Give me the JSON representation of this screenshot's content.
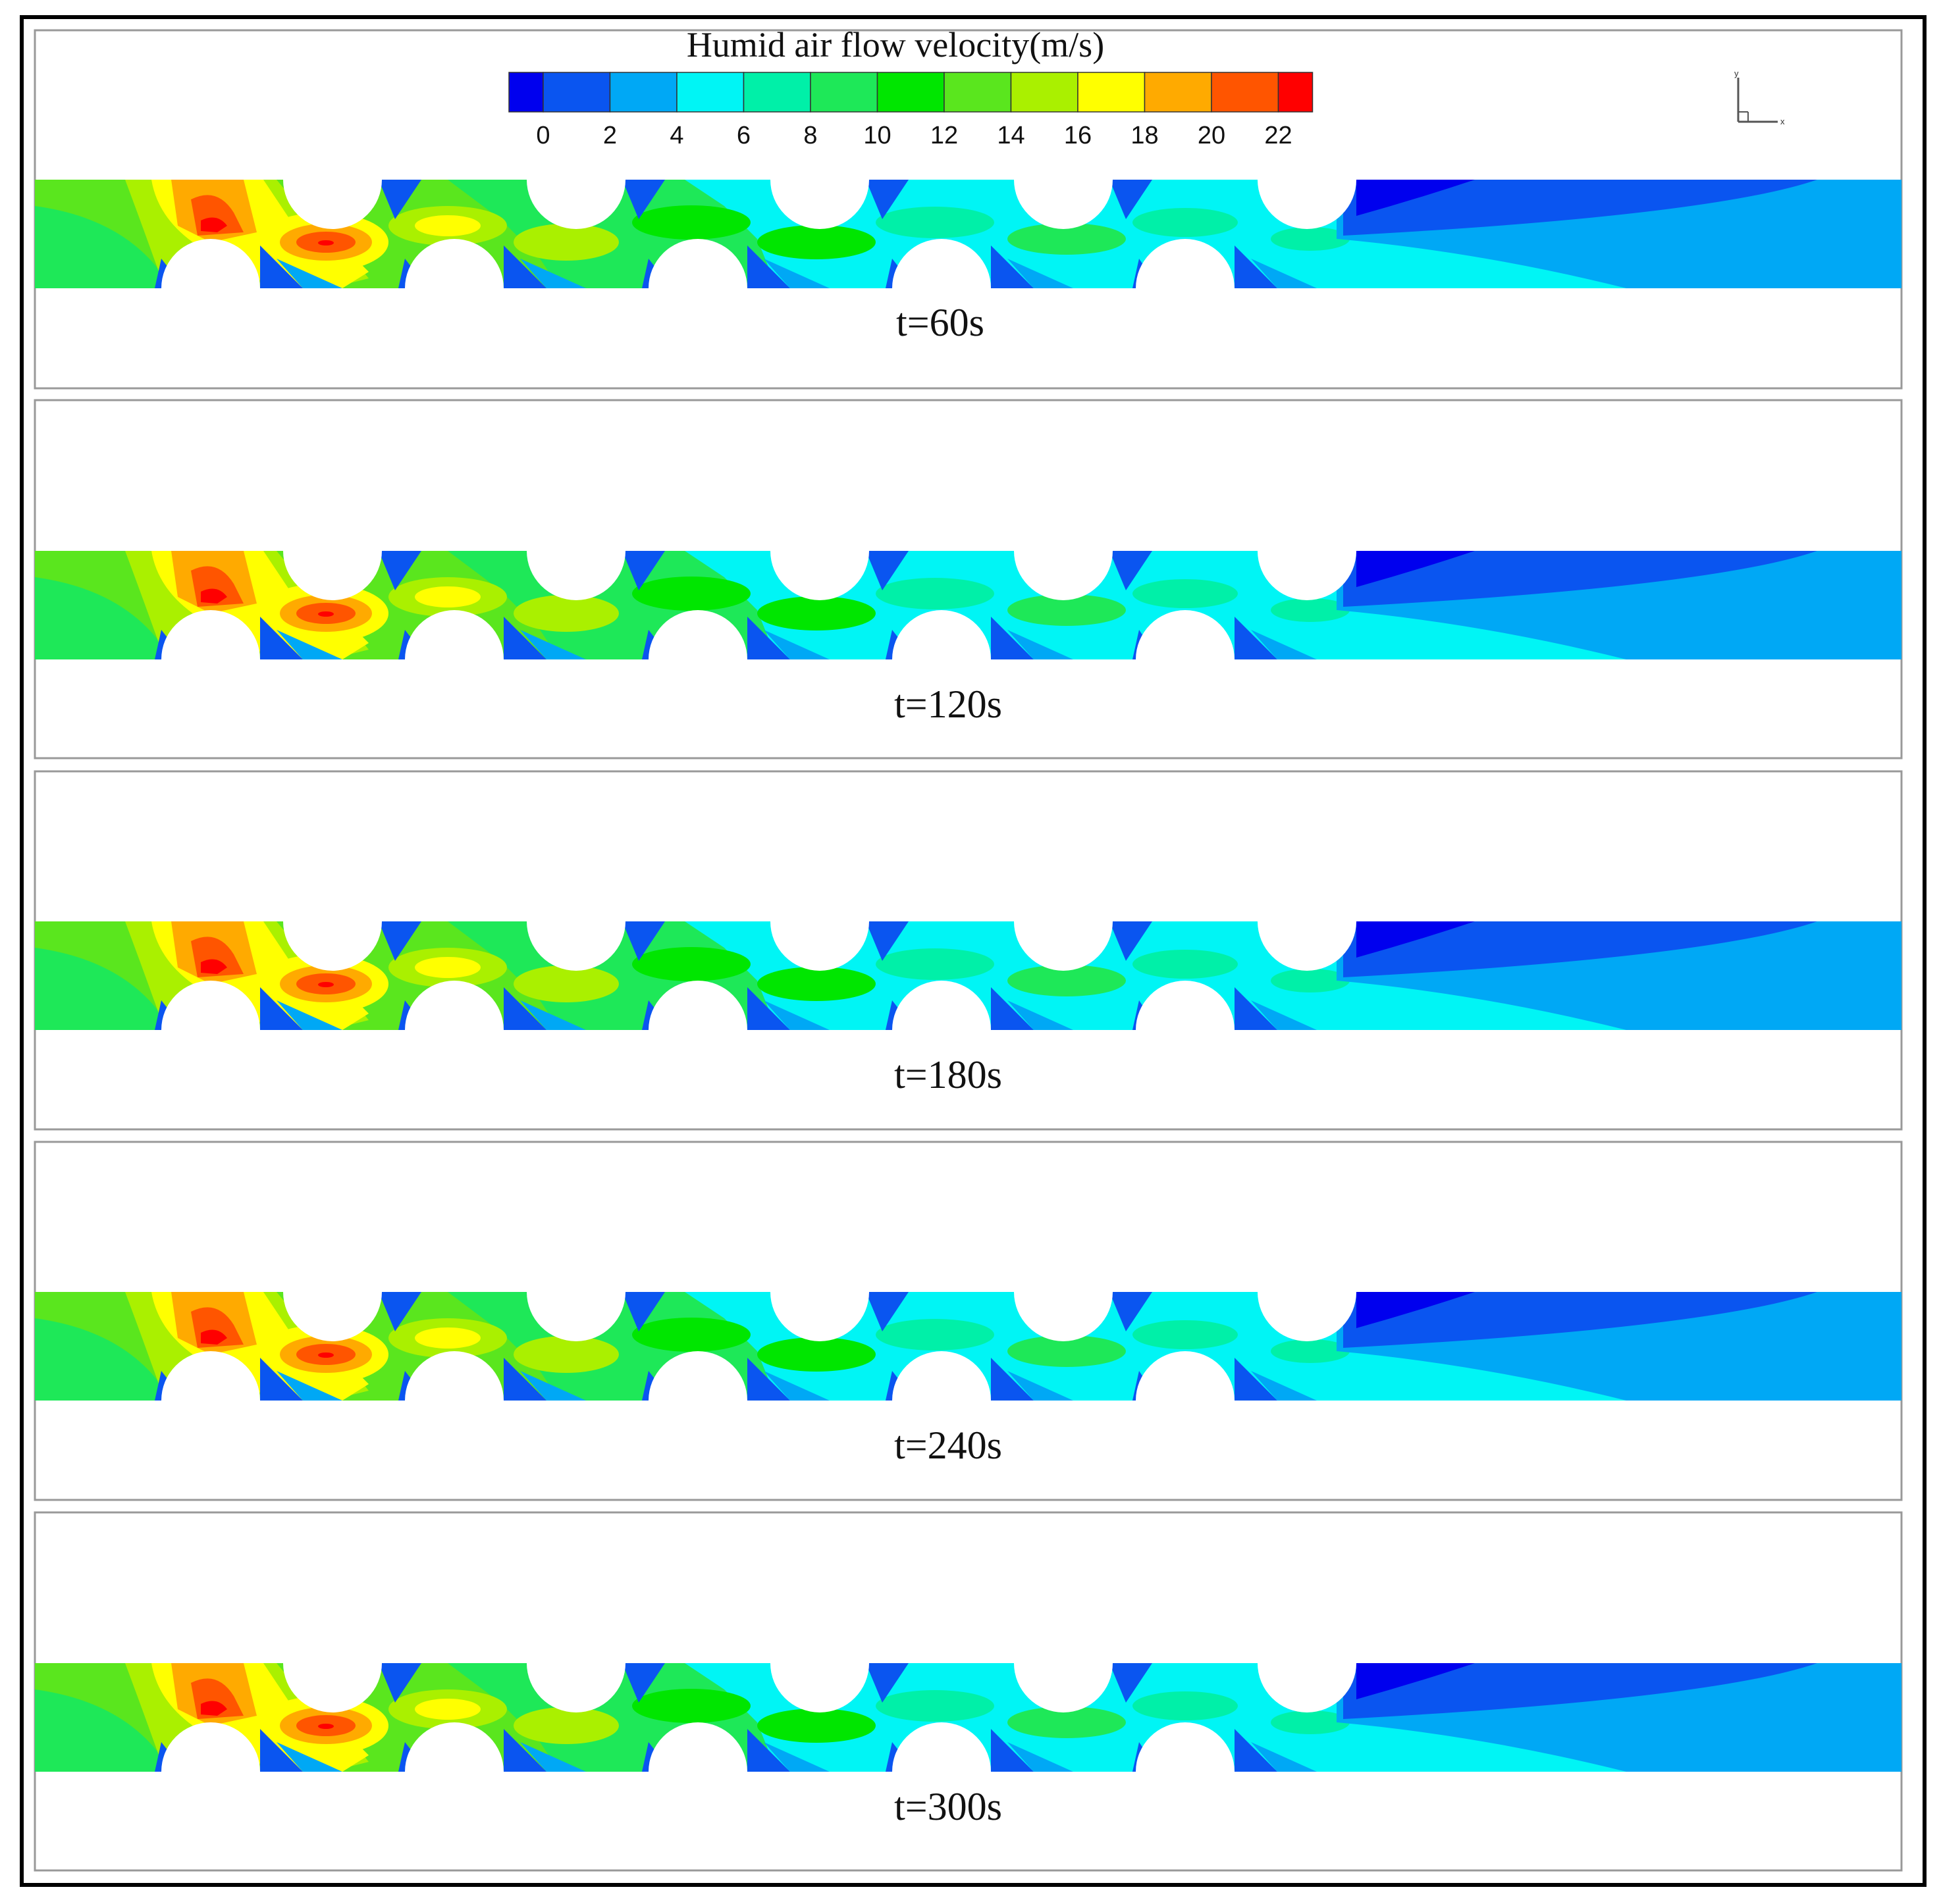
{
  "colorbar": {
    "title": "Humid air flow velocity(m/s)",
    "ticks": [
      "0",
      "2",
      "4",
      "6",
      "8",
      "10",
      "12",
      "14",
      "16",
      "18",
      "20",
      "22"
    ],
    "colors": [
      "#0000ee",
      "#0a55f0",
      "#00a8f5",
      "#00f5f5",
      "#00f0a8",
      "#1ee858",
      "#00e600",
      "#5ae61e",
      "#aaf000",
      "#ffff00",
      "#ffaa00",
      "#ff5500",
      "#ff0000"
    ]
  },
  "axis_triad": {
    "y_label": "y",
    "x_label": "x"
  },
  "panels": [
    {
      "caption": "t=60s"
    },
    {
      "caption": "t=120s"
    },
    {
      "caption": "t=180s"
    },
    {
      "caption": "t=240s"
    },
    {
      "caption": "t=300s"
    }
  ]
}
